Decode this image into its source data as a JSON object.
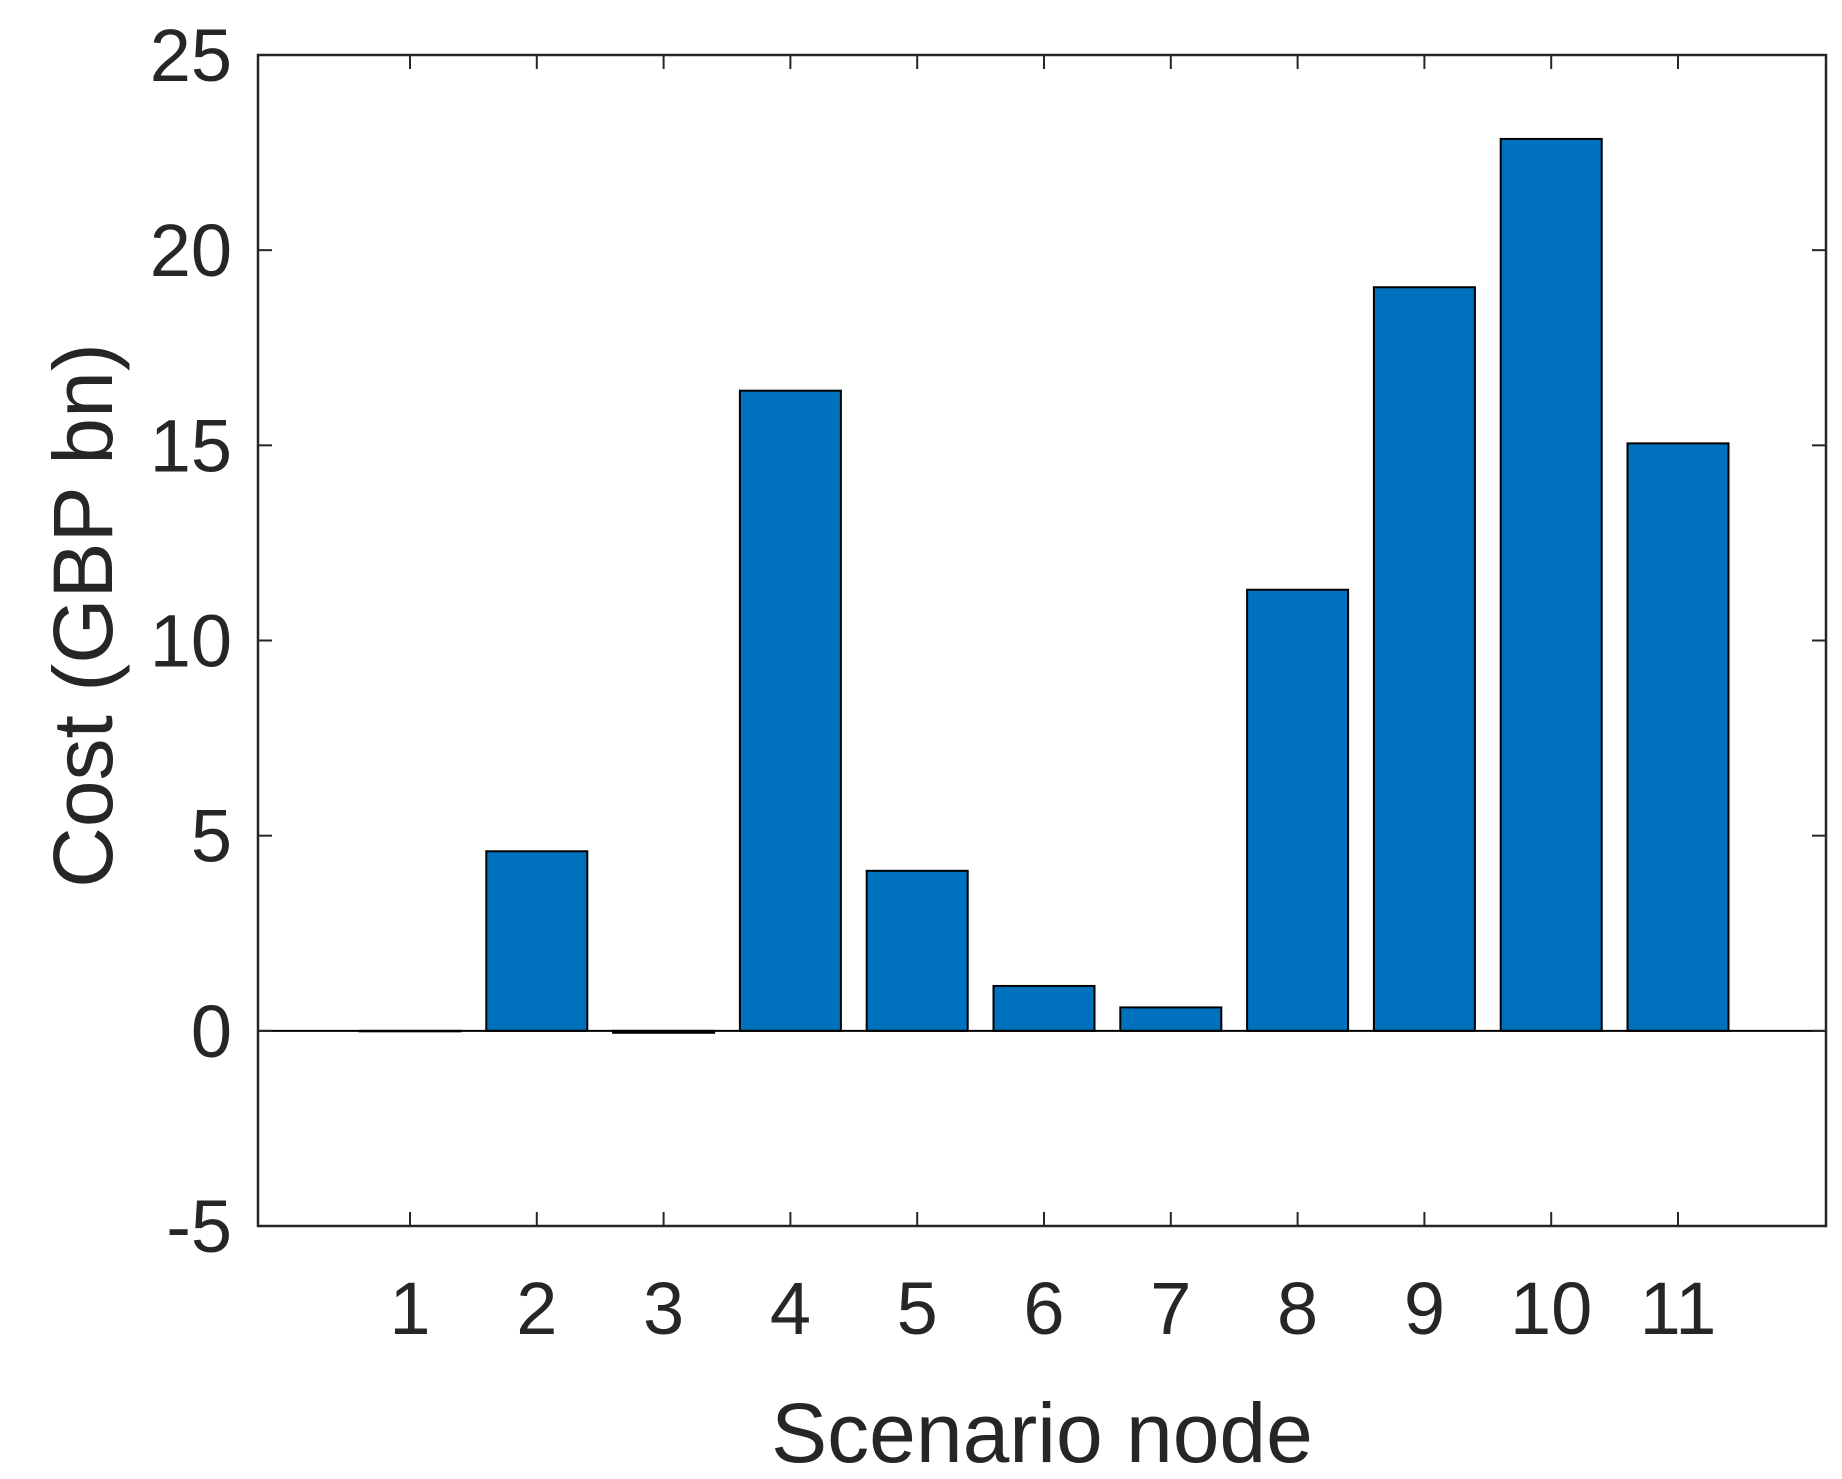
{
  "chart_data": {
    "type": "bar",
    "title": "",
    "xlabel": "Scenario node",
    "ylabel": "Cost (GBP bn)",
    "categories": [
      "1",
      "2",
      "3",
      "4",
      "5",
      "6",
      "7",
      "8",
      "9",
      "10",
      "11"
    ],
    "values": [
      0.0,
      4.6,
      -0.05,
      16.4,
      4.1,
      1.15,
      0.6,
      11.3,
      19.05,
      22.85,
      15.05
    ],
    "ylim": [
      -5,
      25
    ],
    "yticks": [
      "-5",
      "0",
      "5",
      "10",
      "15",
      "20",
      "25"
    ],
    "grid": false,
    "legend": "none",
    "bar_color": "#0072BD",
    "edge_color": "#000000"
  }
}
